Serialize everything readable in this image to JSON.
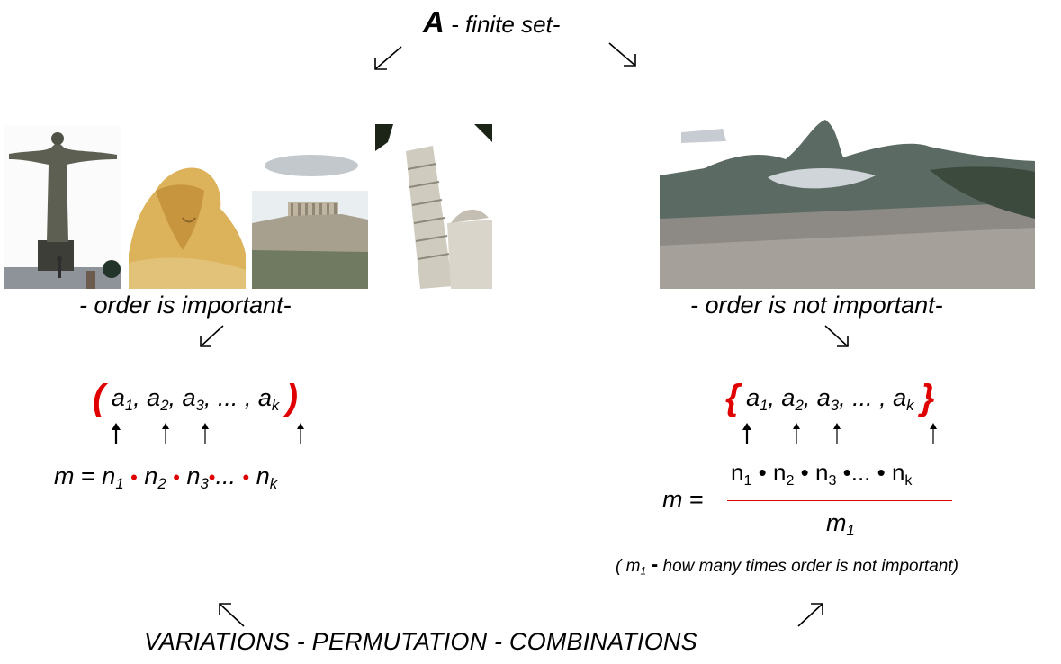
{
  "title": {
    "letter": "A",
    "text": " - finite set-"
  },
  "left": {
    "label": "- order is important-",
    "tuple": {
      "open": "(",
      "close": ")",
      "items": [
        "a1",
        "a2",
        "a3",
        "ak"
      ],
      "ellipsis": "..."
    },
    "formula": {
      "lhs": "m = ",
      "terms": [
        "n1",
        "n2",
        "n3",
        "...",
        "nk"
      ]
    }
  },
  "right": {
    "label": "- order is not important-",
    "tuple": {
      "open": "{",
      "close": "}",
      "items": [
        "a1",
        "a2",
        "a3",
        "ak"
      ],
      "ellipsis": "..."
    },
    "formula": {
      "lhs": "m = ",
      "numerator": "n1 • n2 • n3 •... • nk",
      "denominator": "m1"
    },
    "note": {
      "open": "( ",
      "symbol": "m1",
      "dash": " - ",
      "text": "how many times order is not important)"
    }
  },
  "bottom": "VARIATIONS  -  PERMUTATION  -  COMBINATIONS",
  "images": [
    "christ-redeemer-photo",
    "sphinx-photo",
    "acropolis-photo",
    "pisa-tower-photo",
    "rio-panorama-photo"
  ],
  "colors": {
    "accent": "#e00000",
    "text": "#000000"
  }
}
